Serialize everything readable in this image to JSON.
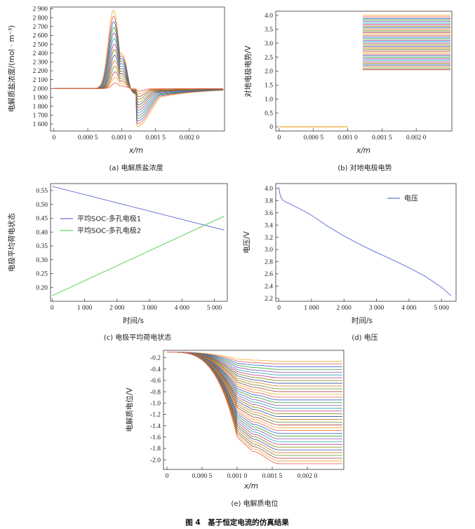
{
  "figure_title": "图 4　基于恒定电流的仿真结果",
  "palette": [
    "#f4a72a",
    "#e8564b",
    "#2f60c8",
    "#2aa02a",
    "#8c4ab0",
    "#22a6b8",
    "#c43a8a",
    "#808000",
    "#3050a0",
    "#e07a1e",
    "#6a8e23",
    "#b04040"
  ],
  "chart_data": [
    {
      "id": "a",
      "type": "line",
      "caption": "(a)  电解质盐浓度",
      "xlabel": "x/m",
      "ylabel": "电解质盐浓度/(mol · m⁻³)",
      "xlim": [
        -5e-05,
        0.00252
      ],
      "ylim": [
        1520,
        2920
      ],
      "xticks": [
        0,
        0.0005,
        0.001,
        0.0015,
        0.002
      ],
      "xtick_labels": [
        "0",
        "0.000 5",
        "0.001 0",
        "0.001 5",
        "0.002 0"
      ],
      "yticks": [
        1600,
        1700,
        1800,
        1900,
        2000,
        2100,
        2200,
        2300,
        2400,
        2500,
        2600,
        2700,
        2800,
        2900
      ],
      "ytick_labels": [
        "1 600",
        "1 700",
        "1 800",
        "1 900",
        "2 000",
        "2 100",
        "2 200",
        "2 300",
        "2 400",
        "2 500",
        "2 600",
        "2 700",
        "2 800",
        "2 900"
      ],
      "series_count": 14,
      "peak_max": 2880,
      "trough_min": 1570,
      "note": "family of concentration profiles"
    },
    {
      "id": "b",
      "type": "line",
      "caption": "(b)  对地电极电势",
      "xlabel": "x/m",
      "ylabel": "对地电极电势/V",
      "xlim": [
        -5e-05,
        0.00252
      ],
      "ylim": [
        -0.15,
        4.15
      ],
      "xticks": [
        0,
        0.0005,
        0.001,
        0.0015,
        0.002
      ],
      "xtick_labels": [
        "0",
        "0.000 5",
        "0.001 0",
        "0.001 5",
        "0.002 0"
      ],
      "yticks": [
        0,
        0.5,
        1.0,
        1.5,
        2.0,
        2.5,
        3.0,
        3.5,
        4.0
      ],
      "ytick_labels": [
        "0",
        "0.5",
        "1.0",
        "1.5",
        "2.0",
        "2.5",
        "3.0",
        "3.5",
        "4.0"
      ],
      "left_segment": {
        "x": [
          0,
          0.001
        ],
        "y": 0
      },
      "right_segment": {
        "x": [
          0.00122,
          0.0025
        ],
        "y_top": 4.0,
        "y_bottom": 2.05
      },
      "series_count": 36
    },
    {
      "id": "c",
      "type": "line",
      "caption": "(c)  电极平均荷电状态",
      "xlabel": "时间/s",
      "ylabel": "电极平均荷电状态",
      "xlim": [
        -50,
        5400
      ],
      "ylim": [
        0.15,
        0.575
      ],
      "xticks": [
        0,
        1000,
        2000,
        3000,
        4000,
        5000
      ],
      "xtick_labels": [
        "0",
        "1 000",
        "2 000",
        "3 000",
        "4 000",
        "5 000"
      ],
      "yticks": [
        0.2,
        0.25,
        0.3,
        0.35,
        0.4,
        0.45,
        0.5,
        0.55
      ],
      "ytick_labels": [
        "0.20",
        "0.25",
        "0.30",
        "0.35",
        "0.40",
        "0.45",
        "0.50",
        "0.55"
      ],
      "series": [
        {
          "name": "平均SOC-多孔电极1",
          "color": "#6a74d6",
          "x": [
            0,
            5300
          ],
          "y": [
            0.565,
            0.407
          ]
        },
        {
          "name": "平均SOC-多孔电极2",
          "color": "#5fcf5f",
          "x": [
            0,
            5300
          ],
          "y": [
            0.17,
            0.457
          ]
        }
      ]
    },
    {
      "id": "d",
      "type": "line",
      "caption": "(d)  电压",
      "xlabel": "时间/s",
      "ylabel": "电压/V",
      "xlim": [
        -100,
        5450
      ],
      "ylim": [
        2.15,
        4.08
      ],
      "xticks": [
        0,
        1000,
        2000,
        3000,
        4000,
        5000
      ],
      "xtick_labels": [
        "0",
        "1 000",
        "2 000",
        "3 000",
        "4 000",
        "5 000"
      ],
      "yticks": [
        2.2,
        2.4,
        2.6,
        2.8,
        3.0,
        3.2,
        3.4,
        3.6,
        3.8,
        4.0
      ],
      "ytick_labels": [
        "2.2",
        "2.4",
        "2.6",
        "2.8",
        "3.0",
        "3.2",
        "3.4",
        "3.6",
        "3.8",
        "4.0"
      ],
      "series": [
        {
          "name": "电压",
          "color": "#6a74d6",
          "x": [
            0,
            20,
            60,
            120,
            200,
            400,
            700,
            1000,
            1500,
            2000,
            2500,
            3000,
            3500,
            4000,
            4500,
            5000,
            5300
          ],
          "y": [
            4.02,
            3.93,
            3.85,
            3.81,
            3.78,
            3.73,
            3.65,
            3.56,
            3.38,
            3.22,
            3.08,
            2.95,
            2.83,
            2.7,
            2.56,
            2.38,
            2.24
          ]
        }
      ]
    },
    {
      "id": "e",
      "type": "line",
      "caption": "(e)  电解质电位",
      "xlabel": "x/m",
      "ylabel": "电解质电位/V",
      "xlim": [
        -5e-05,
        0.00252
      ],
      "ylim": [
        -2.17,
        -0.07
      ],
      "xticks": [
        0,
        0.0005,
        0.001,
        0.0015,
        0.002
      ],
      "xtick_labels": [
        "0",
        "0.000 5",
        "0.001 0",
        "0.001 5",
        "0.002 0"
      ],
      "yticks": [
        -0.2,
        -0.4,
        -0.6,
        -0.8,
        -1.0,
        -1.2,
        -1.4,
        -1.6,
        -1.8,
        -2.0
      ],
      "ytick_labels": [
        "-0.2",
        "-0.4",
        "-0.6",
        "-0.8",
        "-1.0",
        "-1.2",
        "-1.4",
        "-1.6",
        "-1.8",
        "-2.0"
      ],
      "series_count": 38,
      "start_value": -0.1,
      "top_plateau": -0.26,
      "bottom_plateau": -2.07
    }
  ]
}
